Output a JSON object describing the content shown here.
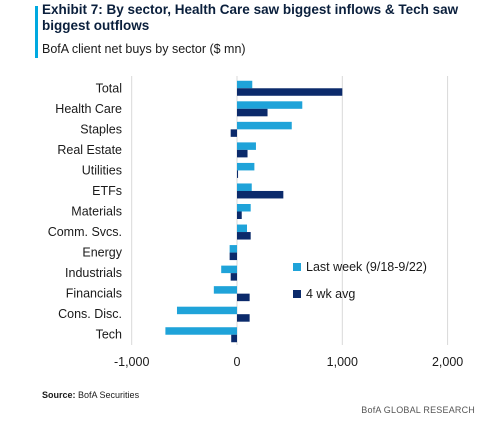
{
  "header": {
    "title": "Exhibit 7: By sector, Health Care saw biggest inflows & Tech saw biggest outflows",
    "subtitle": "BofA client net buys by sector ($ mn)",
    "accent_color": "#00a9e0"
  },
  "footer": {
    "source_label": "Source:",
    "source_text": "BofA Securities",
    "brand": "BofA GLOBAL RESEARCH"
  },
  "chart_data": {
    "type": "bar",
    "orientation": "horizontal",
    "categories": [
      "Total",
      "Health Care",
      "Staples",
      "Real Estate",
      "Utilities",
      "ETFs",
      "Materials",
      "Comm. Svcs.",
      "Energy",
      "Industrials",
      "Financials",
      "Cons. Disc.",
      "Tech"
    ],
    "series": [
      {
        "name": "Last week (9/18-9/22)",
        "color": "#1fa3d9",
        "values": [
          145,
          620,
          520,
          180,
          165,
          140,
          130,
          95,
          -70,
          -150,
          -220,
          -570,
          -680
        ]
      },
      {
        "name": "4 wk avg",
        "color": "#0b2a6b",
        "values": [
          1000,
          290,
          -60,
          100,
          10,
          440,
          45,
          130,
          -70,
          -60,
          120,
          120,
          -55
        ]
      }
    ],
    "xlim": [
      -1000,
      2000
    ],
    "xticks": [
      -1000,
      0,
      1000,
      2000
    ],
    "xtick_labels": [
      "-1,000",
      "0",
      "1,000",
      "2,000"
    ],
    "grid": "vertical",
    "legend_position": "right-middle"
  }
}
